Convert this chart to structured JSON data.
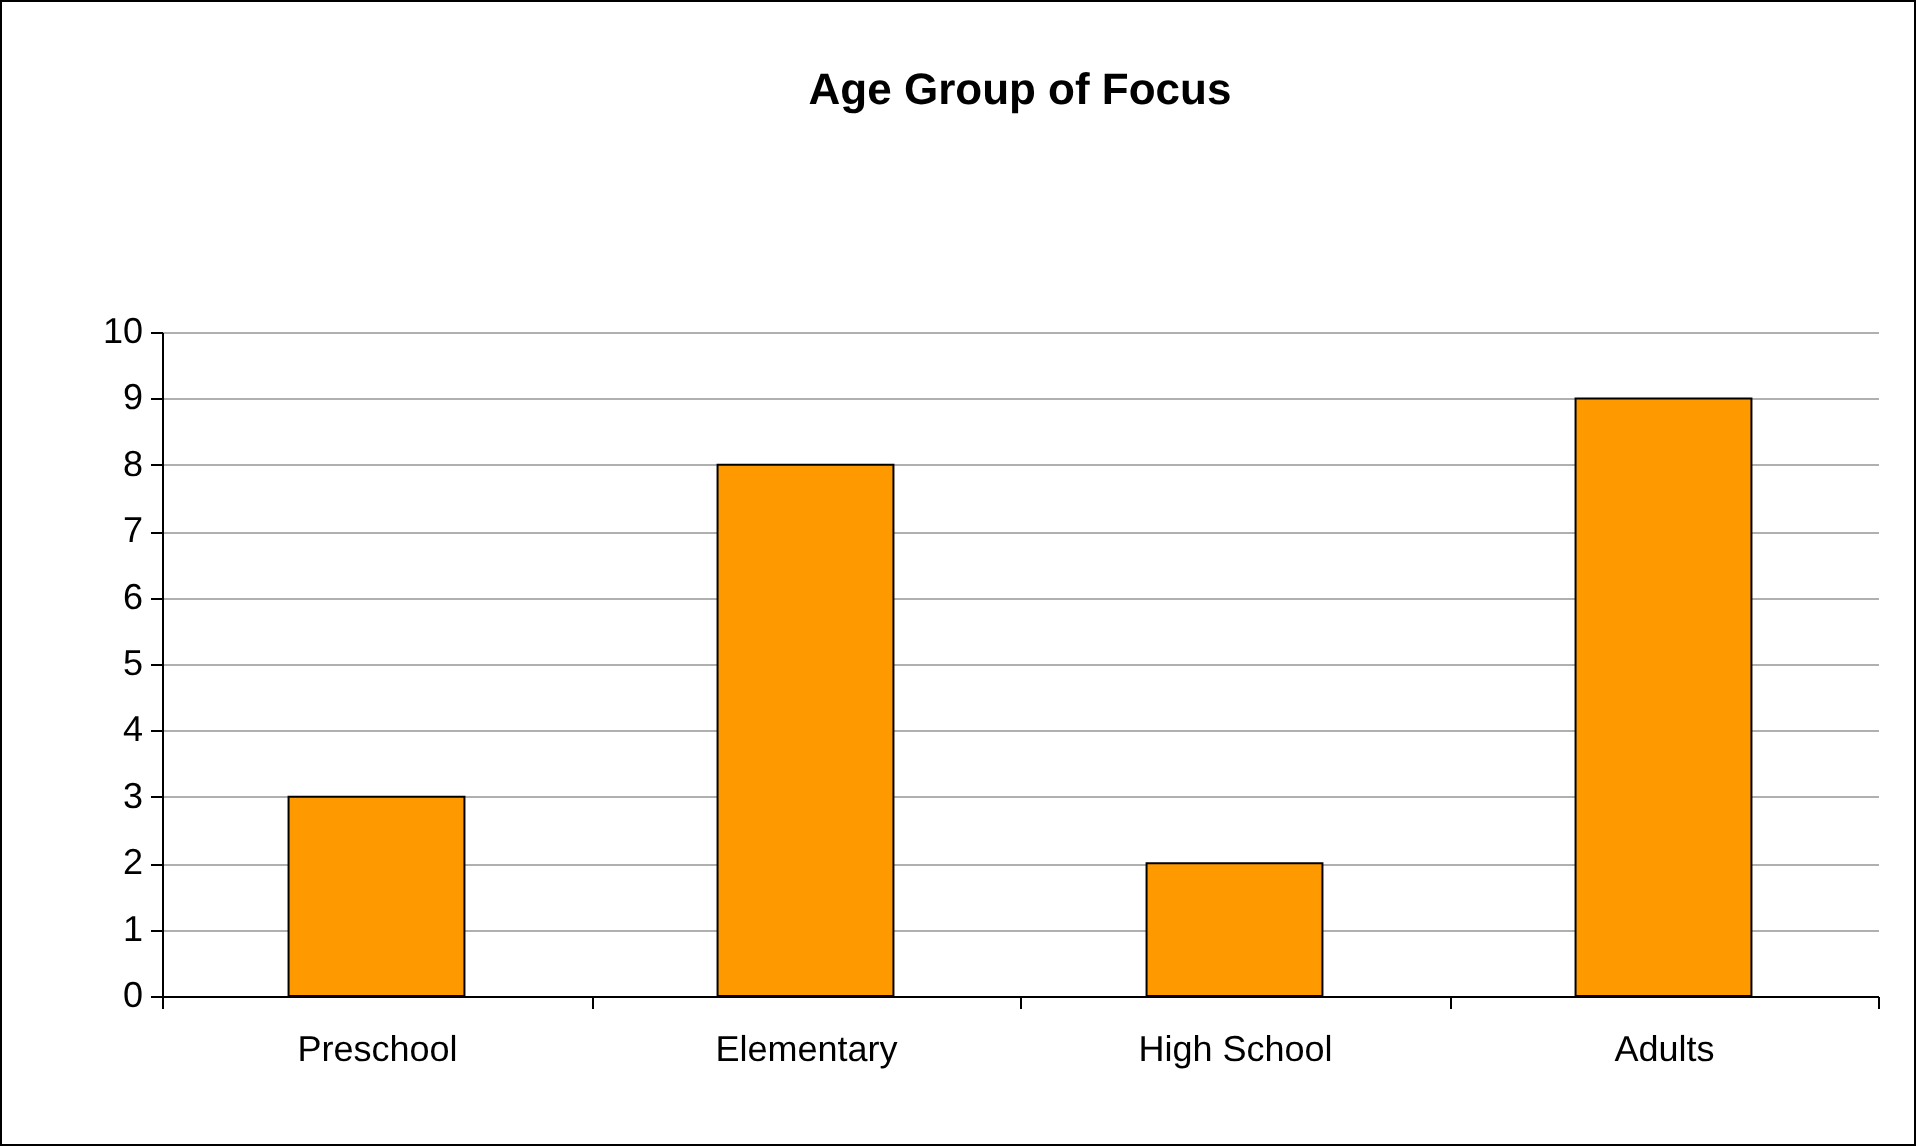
{
  "chart_data": {
    "type": "bar",
    "title": "Age Group of Focus",
    "categories": [
      "Preschool",
      "Elementary",
      "High School",
      "Adults"
    ],
    "values": [
      3,
      8,
      2,
      9
    ],
    "color": "#ff9900",
    "ylim": [
      0,
      10
    ],
    "yticks": [
      0,
      1,
      2,
      3,
      4,
      5,
      6,
      7,
      8,
      9,
      10
    ],
    "grid": "y"
  }
}
